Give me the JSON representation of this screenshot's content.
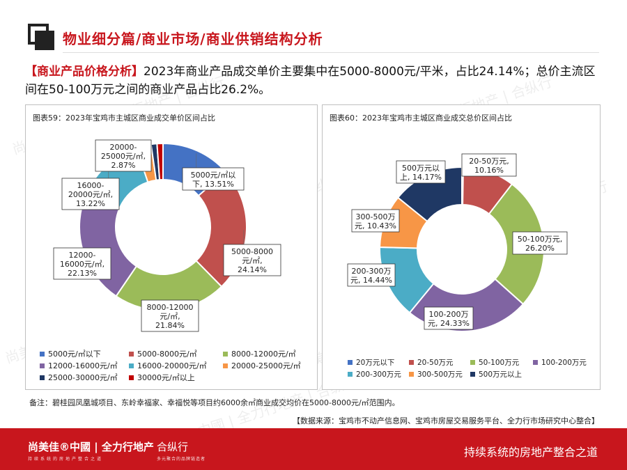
{
  "header": {
    "title": "物业细分篇/商业市场/商业供销结构分析",
    "headline_tag": "【商业产品价格分析】",
    "headline_text": "2023年商业产品成交单价主要集中在5000-8000元/平米，占比24.14%；总价主流区间在50-100万元之间的商业产品占比26.2%。"
  },
  "chart_data": [
    {
      "type": "pie",
      "title": "图表59：2023年宝鸡市主城区商业成交单价区间占比",
      "categories": [
        "5000元/㎡以下",
        "5000-8000元/㎡",
        "8000-12000元/㎡",
        "12000-16000元/㎡",
        "16000-20000元/㎡",
        "20000-25000元/㎡",
        "25000-30000元/㎡",
        "30000元/㎡以上"
      ],
      "values": [
        13.51,
        24.14,
        21.84,
        22.13,
        13.22,
        2.87,
        1.15,
        1.15
      ],
      "colors": [
        "#4472c4",
        "#c0504d",
        "#9bbb59",
        "#8064a2",
        "#4bacc6",
        "#f79646",
        "#1f3864",
        "#c00000"
      ],
      "labels": [
        {
          "index": 0,
          "lines": [
            "5000元/㎡以",
            "下, 13.51%"
          ]
        },
        {
          "index": 1,
          "lines": [
            "5000-8000",
            "元/㎡,",
            "24.14%"
          ]
        },
        {
          "index": 2,
          "lines": [
            "8000-12000",
            "元/㎡,",
            "21.84%"
          ]
        },
        {
          "index": 3,
          "lines": [
            "12000-",
            "16000元/㎡,",
            "22.13%"
          ]
        },
        {
          "index": 4,
          "lines": [
            "16000-",
            "20000元/㎡,",
            "13.22%"
          ]
        },
        {
          "index": 5,
          "lines": [
            "20000-",
            "25000元/㎡,",
            "2.87%"
          ]
        }
      ],
      "legend_position": "bottom"
    },
    {
      "type": "pie",
      "title": "图表60：2023年宝鸡市主城区商业成交总价区间占比",
      "categories": [
        "20万元以下",
        "20-50万元",
        "50-100万元",
        "100-200万元",
        "200-300万元",
        "300-500万元",
        "500万元以上"
      ],
      "values": [
        0.27,
        10.16,
        26.2,
        24.33,
        14.44,
        10.43,
        14.17
      ],
      "colors": [
        "#4472c4",
        "#c0504d",
        "#9bbb59",
        "#8064a2",
        "#4bacc6",
        "#f79646",
        "#1f3864"
      ],
      "labels": [
        {
          "index": 1,
          "lines": [
            "20-50万元,",
            "10.16%"
          ]
        },
        {
          "index": 2,
          "lines": [
            "50-100万元,",
            "26.20%"
          ]
        },
        {
          "index": 3,
          "lines": [
            "100-200万",
            "元, 24.33%"
          ]
        },
        {
          "index": 4,
          "lines": [
            "200-300万",
            "元, 14.44%"
          ]
        },
        {
          "index": 5,
          "lines": [
            "300-500万",
            "元, 10.43%"
          ]
        },
        {
          "index": 6,
          "lines": [
            "500万元以",
            "上, 14.17%"
          ]
        }
      ],
      "legend_position": "bottom"
    }
  ],
  "note": "备注：碧桂园凤凰城项目、东岭幸福家、幸福悦等项目约6000余㎡商业成交均价在5000-8000元/㎡范围内。",
  "source": "【数据来源：宝鸡市不动产信息网、宝鸡市房屋交易服务平台、全力行市场研究中心整合】",
  "footer": {
    "brand": "尚美佳®中國 | 全力行地产",
    "brand_sub": "持续系统的房地产整合之道",
    "brand2": "合纵行",
    "brand2_sub": "多元聚合的品牌链造者",
    "slogan": "持续系统的房地产整合之道"
  },
  "watermark": "尚美佳®中國 | 全力行地产 | 合纵行"
}
